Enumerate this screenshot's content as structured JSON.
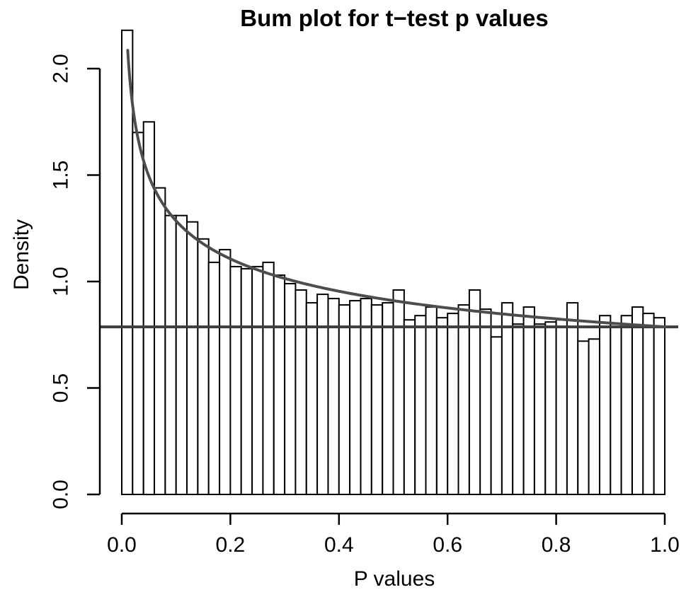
{
  "figure": {
    "background": "#ffffff",
    "text_color": "#000000"
  },
  "chart_data": {
    "type": "bar",
    "subtype": "histogram-with-fitted-density-curve",
    "title": "Bum plot for t−test p values",
    "xlabel": "P values",
    "ylabel": "Density",
    "xlim": [
      0,
      1
    ],
    "ylim": [
      0,
      2.2
    ],
    "grid": false,
    "legend_position": "none",
    "x_ticks": {
      "values": [
        0,
        0.2,
        0.4,
        0.6,
        0.8,
        1.0
      ],
      "labels": [
        "0.0",
        "0.2",
        "0.4",
        "0.6",
        "0.8",
        "1.0"
      ]
    },
    "y_ticks": {
      "values": [
        0,
        0.5,
        1.0,
        1.5,
        2.0
      ],
      "labels": [
        "0.0",
        "0.5",
        "1.0",
        "1.5",
        "2.0"
      ]
    },
    "histogram": {
      "bin_start": 0,
      "bin_width": 0.02,
      "bar_fill": "#ffffff",
      "bar_stroke": "#000000",
      "densities": [
        2.18,
        1.7,
        1.75,
        1.44,
        1.31,
        1.31,
        1.28,
        1.2,
        1.09,
        1.15,
        1.07,
        1.06,
        1.07,
        1.09,
        1.03,
        0.99,
        0.96,
        0.9,
        0.94,
        0.92,
        0.89,
        0.91,
        0.92,
        0.89,
        0.9,
        0.96,
        0.82,
        0.84,
        0.88,
        0.83,
        0.85,
        0.89,
        0.96,
        0.87,
        0.74,
        0.9,
        0.8,
        0.88,
        0.8,
        0.81,
        0.82,
        0.9,
        0.72,
        0.73,
        0.84,
        0.8,
        0.84,
        0.88,
        0.85,
        0.83
      ]
    },
    "bum_curve": {
      "description": "fitted beta-uniform mixture density",
      "formula": "f(p) = lambda + (1 - lambda) * a * p^(a - 1)",
      "lambda": 0.074,
      "a": 0.77,
      "p_start": 0.011,
      "end_value_at_p1": 0.787,
      "color": "#4d4d4d"
    },
    "pi0_line": {
      "description": "horizontal pi0 estimate line",
      "value": 0.787,
      "color": "#3d3d3d"
    },
    "axis_color": "#000000"
  }
}
